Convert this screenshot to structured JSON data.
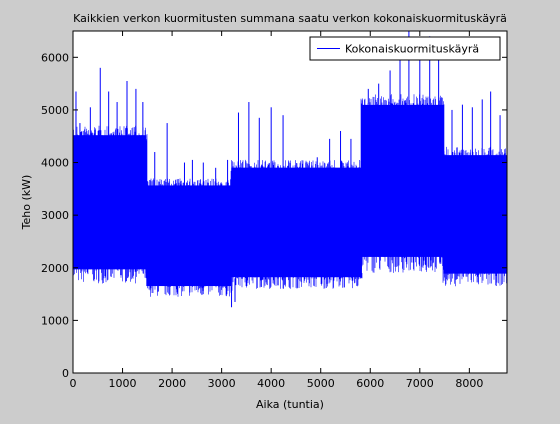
{
  "figure": {
    "background": "#cccccc"
  },
  "chart_data": {
    "type": "line",
    "title": "Kaikkien verkon kuormitusten summana saatu verkon kokonaiskuormituskäyrä",
    "xlabel": "Aika (tuntia)",
    "ylabel": "Teho (kW)",
    "xlim": [
      0,
      8760
    ],
    "ylim": [
      0,
      6500
    ],
    "xticks": [
      0,
      1000,
      2000,
      3000,
      4000,
      5000,
      6000,
      7000,
      8000
    ],
    "yticks": [
      0,
      1000,
      2000,
      3000,
      4000,
      5000,
      6000
    ],
    "grid": false,
    "legend": {
      "entries": [
        "Kokonaiskuormituskäyrä"
      ],
      "position": "top-right"
    },
    "series": [
      {
        "name": "Kokonaiskuormituskäyrä",
        "color": "#0000ff",
        "segments": [
          {
            "x_start": 0,
            "x_end": 1480,
            "min": 1700,
            "max": 4700
          },
          {
            "x_start": 1480,
            "x_end": 3200,
            "min": 1450,
            "max": 3700
          },
          {
            "x_start": 3200,
            "x_end": 5830,
            "min": 1600,
            "max": 4050
          },
          {
            "x_start": 5830,
            "x_end": 7480,
            "min": 1900,
            "max": 5300
          },
          {
            "x_start": 7480,
            "x_end": 8760,
            "min": 1650,
            "max": 4300
          }
        ],
        "peaks": [
          {
            "x": 60,
            "y": 5350
          },
          {
            "x": 140,
            "y": 4750
          },
          {
            "x": 350,
            "y": 5050
          },
          {
            "x": 550,
            "y": 5800
          },
          {
            "x": 720,
            "y": 5350
          },
          {
            "x": 890,
            "y": 5150
          },
          {
            "x": 1090,
            "y": 5550
          },
          {
            "x": 1270,
            "y": 5400
          },
          {
            "x": 1410,
            "y": 5150
          },
          {
            "x": 1650,
            "y": 4200
          },
          {
            "x": 1900,
            "y": 4750
          },
          {
            "x": 2250,
            "y": 4000
          },
          {
            "x": 2410,
            "y": 4050
          },
          {
            "x": 2630,
            "y": 4000
          },
          {
            "x": 2880,
            "y": 3900
          },
          {
            "x": 3120,
            "y": 4050
          },
          {
            "x": 3340,
            "y": 4950
          },
          {
            "x": 3550,
            "y": 5150
          },
          {
            "x": 3760,
            "y": 4850
          },
          {
            "x": 4000,
            "y": 5050
          },
          {
            "x": 4240,
            "y": 4900
          },
          {
            "x": 4700,
            "y": 4000
          },
          {
            "x": 4930,
            "y": 4100
          },
          {
            "x": 5180,
            "y": 4450
          },
          {
            "x": 5400,
            "y": 4600
          },
          {
            "x": 5610,
            "y": 4450
          },
          {
            "x": 5960,
            "y": 5400
          },
          {
            "x": 6170,
            "y": 5500
          },
          {
            "x": 6400,
            "y": 5750
          },
          {
            "x": 6600,
            "y": 6300
          },
          {
            "x": 6780,
            "y": 6500
          },
          {
            "x": 7000,
            "y": 6100
          },
          {
            "x": 7200,
            "y": 6400
          },
          {
            "x": 7380,
            "y": 6100
          },
          {
            "x": 7650,
            "y": 5000
          },
          {
            "x": 7860,
            "y": 5100
          },
          {
            "x": 8060,
            "y": 5050
          },
          {
            "x": 8260,
            "y": 5200
          },
          {
            "x": 8430,
            "y": 5350
          },
          {
            "x": 8620,
            "y": 4900
          }
        ],
        "dips": [
          {
            "x": 1480,
            "y": 2400
          },
          {
            "x": 3200,
            "y": 1250
          },
          {
            "x": 3270,
            "y": 1350
          },
          {
            "x": 5830,
            "y": 1900
          }
        ]
      }
    ]
  }
}
